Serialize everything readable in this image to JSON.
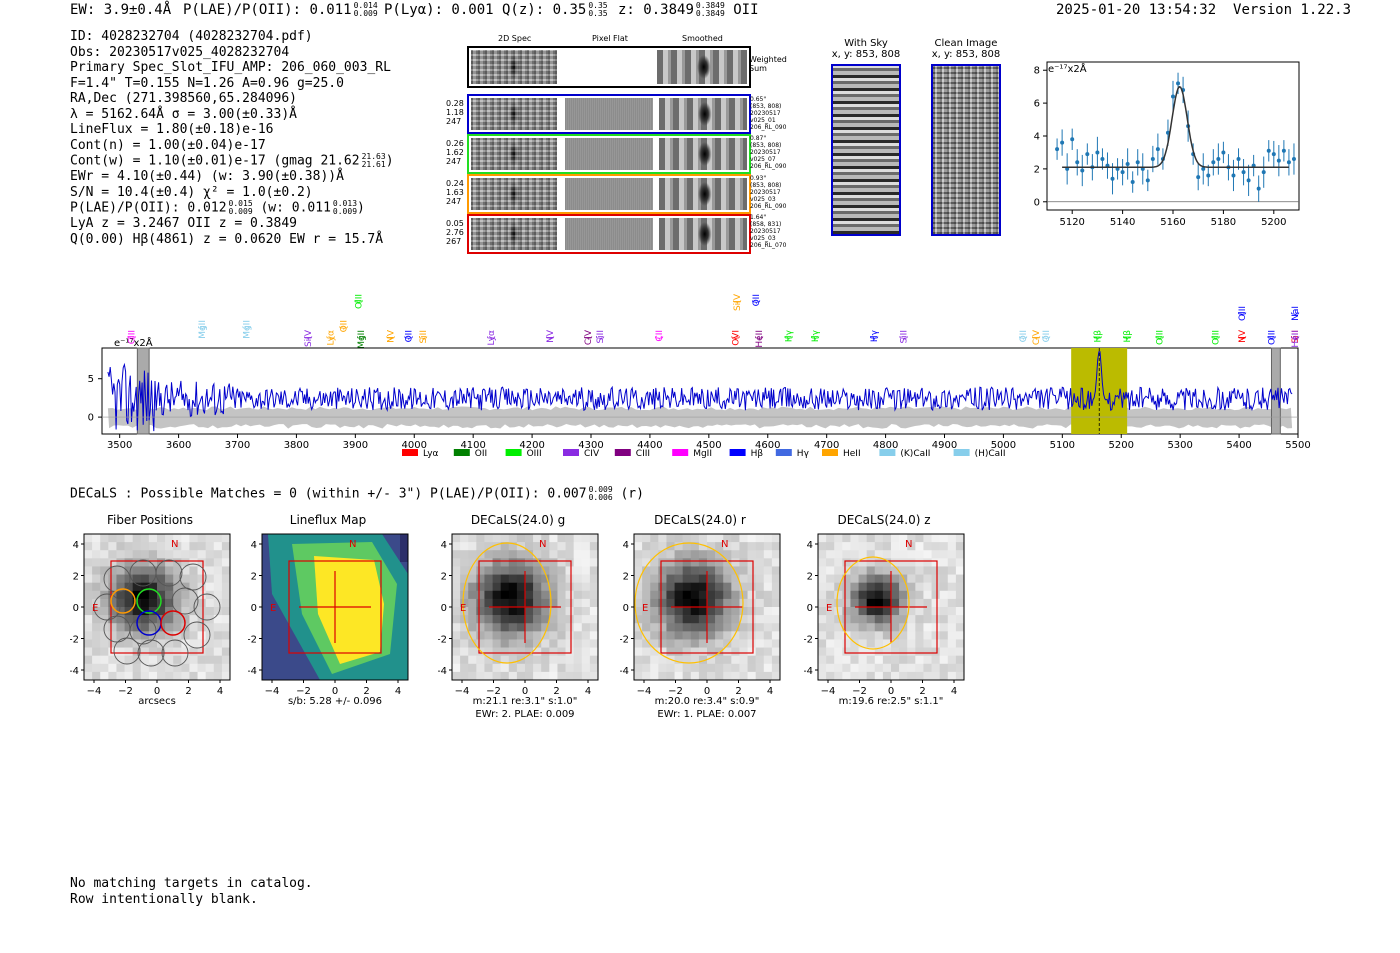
{
  "header": {
    "ew_text": "EW: 3.9±0.4Å",
    "plae_label": "P(LAE)/P(OII):",
    "plae_value": "0.011",
    "plae_hi": "0.014",
    "plae_lo": "0.009",
    "plya_text": "P(Lyα): 0.001",
    "q_label": "Q(z):",
    "q_value": "0.35",
    "q_hi": "0.35",
    "q_lo": "0.35",
    "z_label": "z:",
    "z_value": "0.3849",
    "z_hi": "0.3849",
    "z_lo": "0.3849",
    "z_line": "OII",
    "timestamp": "2025-01-20 13:54:32",
    "version": "Version 1.22.3"
  },
  "info": {
    "line1": "ID: 4028232704 (4028232704.pdf)",
    "line2": "Obs: 20230517v025_4028232704",
    "line3": "Primary Spec_Slot_IFU_AMP: 206_060_003_RL",
    "line4": "F=1.4\"  T=0.155  N=1.26  A=0.96  g=25.0",
    "line5": "RA,Dec (271.398560,65.284096)",
    "line6": "λ = 5162.64Å  σ = 3.00(±0.33)Å",
    "line7": "LineFlux = 1.80(±0.18)e-16",
    "line8": "Cont(n) = 1.00(±0.04)e-17",
    "line9": "Cont(w) = 1.10(±0.01)e-17 (gmag 21.62",
    "line9_hi": "21.63",
    "line9_lo": "21.61",
    "line9_end": ")",
    "line10": "EWr = 4.10(±0.44)  (w: 3.90(±0.38))Å",
    "line11": "S/N = 10.4(±0.4)  χ² = 1.0(±0.2)",
    "line12": "P(LAE)/P(OII): 0.012",
    "line12_hi": "0.015",
    "line12_lo": "0.009",
    "line12_mid": " (w: 0.011",
    "line12_hi2": "0.013",
    "line12_lo2": "0.009",
    "line12_end": ")",
    "line13": "LyA z = 3.2467  OII z = 0.3849",
    "line14": "Q(0.00) Hβ(4861) z = 0.0620  EW r = 15.7Å"
  },
  "cutouts": {
    "col_titles": [
      "2D Spec",
      "Pixel Flat",
      "Smoothed"
    ],
    "weighted_label": "Weighted\nSum",
    "rows": [
      {
        "left": [
          "0.28",
          "1.18",
          "247"
        ],
        "right": [
          "0.65\"",
          "(853, 808)",
          "20230517",
          "v025_01",
          "206_RL_090"
        ],
        "color": "#0000cc"
      },
      {
        "left": [
          "0.26",
          "1.62",
          "247"
        ],
        "right": [
          "0.87\"",
          "(853, 808)",
          "20230517",
          "v025_07",
          "206_RL_090"
        ],
        "color": "#22dd22"
      },
      {
        "left": [
          "0.24",
          "1.63",
          "247"
        ],
        "right": [
          "0.93\"",
          "(853, 808)",
          "20230517",
          "v025_03",
          "206_RL_090"
        ],
        "color": "#ff9900"
      },
      {
        "left": [
          "0.05",
          "2.76",
          "267"
        ],
        "right": [
          "1.64\"",
          "(858, 831)",
          "20230517",
          "v025_03",
          "206_RL_070"
        ],
        "color": "#dd0000"
      }
    ]
  },
  "sky": {
    "with_sky_title": "With Sky",
    "with_sky_coords": "x, y: 853, 808",
    "clean_title": "Clean Image",
    "clean_coords": "x, y: 853, 808"
  },
  "line_fit": {
    "unit_label": "e⁻¹⁷x2Å",
    "x_ticks": [
      "5120",
      "5140",
      "5160",
      "5180",
      "5200"
    ],
    "y_ticks": [
      "0",
      "2",
      "4",
      "6",
      "8"
    ]
  },
  "spectrum": {
    "unit_label": "e⁻¹⁷x2Å",
    "x_ticks": [
      "3500",
      "3600",
      "3700",
      "3800",
      "3900",
      "4000",
      "4100",
      "4200",
      "4300",
      "4400",
      "4500",
      "4600",
      "4700",
      "4800",
      "4900",
      "5000",
      "5100",
      "5200",
      "5300",
      "5400",
      "5500"
    ],
    "y_ticks": [
      "0",
      "5"
    ],
    "legend": [
      {
        "label": "Lyα",
        "color": "#ff0000"
      },
      {
        "label": "OII",
        "color": "#008000"
      },
      {
        "label": "OIII",
        "color": "#00ee00"
      },
      {
        "label": "CIV",
        "color": "#8a2be2"
      },
      {
        "label": "CIII",
        "color": "#800080"
      },
      {
        "label": "MgII",
        "color": "#ff00ff"
      },
      {
        "label": "Hβ",
        "color": "#0000ff"
      },
      {
        "label": "Hγ",
        "color": "#4169e1"
      },
      {
        "label": "HeII",
        "color": "#ffa500"
      },
      {
        "label": "(K)CaII",
        "color": "#87ceeb"
      },
      {
        "label": "(H)CaII",
        "color": "#87ceeb"
      }
    ],
    "line_labels": [
      {
        "text": "CIII",
        "wave": 3520,
        "color": "#ff00ff",
        "row": 3
      },
      {
        "text": "MgII",
        "wave": 3640,
        "color": "#87ceeb",
        "row": 2
      },
      {
        "text": "MgII",
        "wave": 3715,
        "color": "#87ceeb",
        "row": 2
      },
      {
        "text": "SiIV",
        "wave": 3820,
        "color": "#8a2be2",
        "row": 3
      },
      {
        "text": "Lyα",
        "wave": 3858,
        "color": "#ffa500",
        "row": 3
      },
      {
        "text": "OII",
        "wave": 3880,
        "color": "#ffa500",
        "row": 2
      },
      {
        "text": "MgII",
        "wave": 3910,
        "color": "#008000",
        "row": 3
      },
      {
        "text": "OIII",
        "wave": 3905,
        "color": "#00ee00",
        "row": 0
      },
      {
        "text": "NV",
        "wave": 3960,
        "color": "#ffa500",
        "row": 3
      },
      {
        "text": "OII",
        "wave": 3990,
        "color": "#0000ff",
        "row": 3
      },
      {
        "text": "SiII",
        "wave": 4015,
        "color": "#ffa500",
        "row": 3
      },
      {
        "text": "Lyα",
        "wave": 4130,
        "color": "#8a2be2",
        "row": 3
      },
      {
        "text": "NV",
        "wave": 4230,
        "color": "#8a2be2",
        "row": 3
      },
      {
        "text": "CIV",
        "wave": 4295,
        "color": "#800080",
        "row": 3
      },
      {
        "text": "SiII",
        "wave": 4315,
        "color": "#8a2be2",
        "row": 3
      },
      {
        "text": "CII",
        "wave": 4415,
        "color": "#ff00ff",
        "row": 3
      },
      {
        "text": "OVI",
        "wave": 4545,
        "color": "#ff0000",
        "row": 3
      },
      {
        "text": "SiIV",
        "wave": 4548,
        "color": "#ffa500",
        "row": 0
      },
      {
        "text": "OII",
        "wave": 4580,
        "color": "#0000ff",
        "row": 0
      },
      {
        "text": "HeII",
        "wave": 4585,
        "color": "#800080",
        "row": 3
      },
      {
        "text": "Hγ",
        "wave": 4635,
        "color": "#00ee00",
        "row": 3
      },
      {
        "text": "Hγ",
        "wave": 4680,
        "color": "#00ee00",
        "row": 3
      },
      {
        "text": "Hγ",
        "wave": 4780,
        "color": "#0000ff",
        "row": 3
      },
      {
        "text": "SiII",
        "wave": 4830,
        "color": "#8a2be2",
        "row": 3
      },
      {
        "text": "OII",
        "wave": 5033,
        "color": "#87ceeb",
        "row": 3
      },
      {
        "text": "CIV",
        "wave": 5055,
        "color": "#ffa500",
        "row": 3
      },
      {
        "text": "OII",
        "wave": 5072,
        "color": "#87ceeb",
        "row": 3
      },
      {
        "text": "Hβ",
        "wave": 5160,
        "color": "#00ee00",
        "row": 3
      },
      {
        "text": "Hβ",
        "wave": 5210,
        "color": "#00ee00",
        "row": 3
      },
      {
        "text": "OIII",
        "wave": 5265,
        "color": "#00ee00",
        "row": 3
      },
      {
        "text": "OIII",
        "wave": 5360,
        "color": "#00ee00",
        "row": 3
      },
      {
        "text": "NV",
        "wave": 5405,
        "color": "#ff0000",
        "row": 3
      },
      {
        "text": "OIII",
        "wave": 5455,
        "color": "#0000ff",
        "row": 3
      },
      {
        "text": "OIII",
        "wave": 5405,
        "color": "#0000ff",
        "row": 1
      },
      {
        "text": "SiII",
        "wave": 5500,
        "color": "#ff0000",
        "row": 3
      },
      {
        "text": "HeII",
        "wave": 5605,
        "color": "#8a2be2",
        "row": 3
      },
      {
        "text": "NaI",
        "wave": 5605,
        "color": "#0000ff",
        "row": 1
      }
    ]
  },
  "decals": {
    "match_text": "DECaLS : Possible Matches = 0 (within +/- 3\")  P(LAE)/P(OII): 0.007",
    "match_hi": "0.009",
    "match_lo": "0.006",
    "match_end": "(r)",
    "axis_ticks": [
      "4",
      "2",
      "0",
      "-2",
      "-4"
    ],
    "x_ticks": [
      "−4",
      "−2",
      "0",
      "2",
      "4"
    ],
    "north": "N",
    "east": "E",
    "panels": [
      {
        "title": "Fiber Positions",
        "caption1": "arcsecs",
        "caption2": ""
      },
      {
        "title": "Lineflux Map",
        "caption1": "s/b: 5.28 +/- 0.096",
        "caption2": ""
      },
      {
        "title": "DECaLS(24.0) g",
        "caption1": "m:21.1  re:3.1\"  s:1.0\"",
        "caption2": "EWr: 2. PLAE: 0.009"
      },
      {
        "title": "DECaLS(24.0) r",
        "caption1": "m:20.0  re:3.4\"  s:0.9\"",
        "caption2": "EWr: 1. PLAE: 0.007"
      },
      {
        "title": "DECaLS(24.0) z",
        "caption1": "m:19.6  re:2.5\"  s:1.1\"",
        "caption2": ""
      }
    ]
  },
  "footer": {
    "line1": "No matching targets in catalog.",
    "line2": "Row intentionally blank."
  },
  "chart_data": [
    {
      "type": "scatter",
      "title": "",
      "xlabel": "",
      "ylabel": "e⁻¹⁷x2Å",
      "xlim": [
        5110,
        5210
      ],
      "ylim": [
        -0.5,
        8.5
      ],
      "model": {
        "center": 5162.64,
        "sigma": 3.0,
        "continuum": 2.1,
        "peak": 7.0
      },
      "points_x": [
        5114,
        5116,
        5118,
        5120,
        5122,
        5124,
        5126,
        5128,
        5130,
        5132,
        5134,
        5136,
        5138,
        5140,
        5142,
        5144,
        5146,
        5148,
        5150,
        5152,
        5154,
        5156,
        5158,
        5160,
        5162,
        5164,
        5166,
        5168,
        5170,
        5172,
        5174,
        5176,
        5178,
        5180,
        5182,
        5184,
        5186,
        5188,
        5190,
        5192,
        5194,
        5196,
        5198,
        5200,
        5202,
        5204,
        5206,
        5208
      ],
      "points_y": [
        3.2,
        3.6,
        2.0,
        3.8,
        2.4,
        1.9,
        2.9,
        2.1,
        3.0,
        2.6,
        2.2,
        1.4,
        2.0,
        1.8,
        2.3,
        1.2,
        2.4,
        2.0,
        1.3,
        2.6,
        3.2,
        2.6,
        4.2,
        6.4,
        7.2,
        6.8,
        4.6,
        2.9,
        1.5,
        2.0,
        1.6,
        2.4,
        2.6,
        3.0,
        2.1,
        1.6,
        2.6,
        1.8,
        1.3,
        2.2,
        0.8,
        1.8,
        3.1,
        2.9,
        2.5,
        3.1,
        2.4,
        2.6
      ]
    },
    {
      "type": "line",
      "title": "",
      "xlabel": "",
      "ylabel": "e⁻¹⁷x2Å",
      "xlim": [
        3470,
        5500
      ],
      "ylim": [
        -2.2,
        9.0
      ],
      "series": [
        {
          "name": "spectrum",
          "color": "#0000cc",
          "description": "noisy flux around ~2.5 with emission peak ~7 at 5162.64"
        },
        {
          "name": "error",
          "color": "#bbbbbb",
          "description": "grey band between ~-1 and ~1"
        }
      ],
      "highlight_range": [
        5115,
        5210
      ],
      "emission_line": 5162.64,
      "masked_ranges": [
        [
          3530,
          3550
        ],
        [
          5455,
          5470
        ]
      ]
    }
  ]
}
